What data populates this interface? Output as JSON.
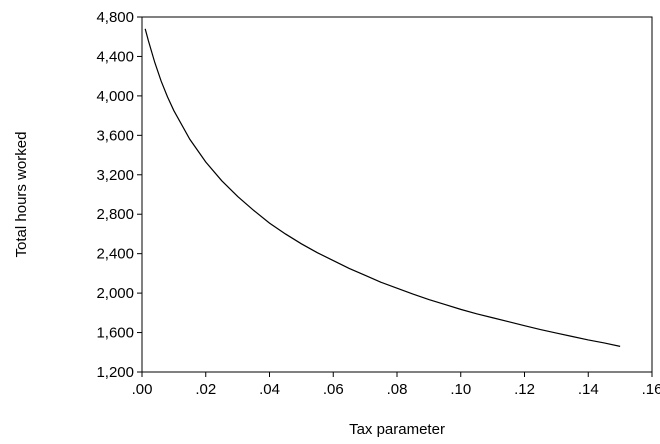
{
  "chart_data": {
    "type": "line",
    "title": "",
    "xlabel": "Tax parameter",
    "ylabel": "Total hours worked",
    "xlim": [
      0.0,
      0.16
    ],
    "ylim": [
      1200,
      4800
    ],
    "xticks": [
      0.0,
      0.02,
      0.04,
      0.06,
      0.08,
      0.1,
      0.12,
      0.14,
      0.16
    ],
    "xtick_labels": [
      ".00",
      ".02",
      ".04",
      ".06",
      ".08",
      ".10",
      ".12",
      ".14",
      ".16"
    ],
    "yticks": [
      1200,
      1600,
      2000,
      2400,
      2800,
      3200,
      3600,
      4000,
      4400,
      4800
    ],
    "ytick_labels": [
      "1,200",
      "1,600",
      "2,000",
      "2,400",
      "2,800",
      "3,200",
      "3,600",
      "4,000",
      "4,400",
      "4,800"
    ],
    "grid": false,
    "series": [
      {
        "color": "#000000",
        "x": [
          0.001,
          0.002,
          0.004,
          0.006,
          0.008,
          0.01,
          0.015,
          0.02,
          0.025,
          0.03,
          0.035,
          0.04,
          0.045,
          0.05,
          0.055,
          0.06,
          0.065,
          0.07,
          0.075,
          0.08,
          0.085,
          0.09,
          0.095,
          0.1,
          0.105,
          0.11,
          0.115,
          0.12,
          0.125,
          0.13,
          0.135,
          0.14,
          0.145,
          0.15
        ],
        "y": [
          4680,
          4560,
          4340,
          4150,
          3990,
          3850,
          3560,
          3330,
          3140,
          2980,
          2840,
          2710,
          2600,
          2500,
          2410,
          2330,
          2250,
          2180,
          2110,
          2050,
          1990,
          1935,
          1885,
          1835,
          1790,
          1750,
          1710,
          1670,
          1630,
          1595,
          1560,
          1525,
          1495,
          1460
        ]
      }
    ]
  }
}
